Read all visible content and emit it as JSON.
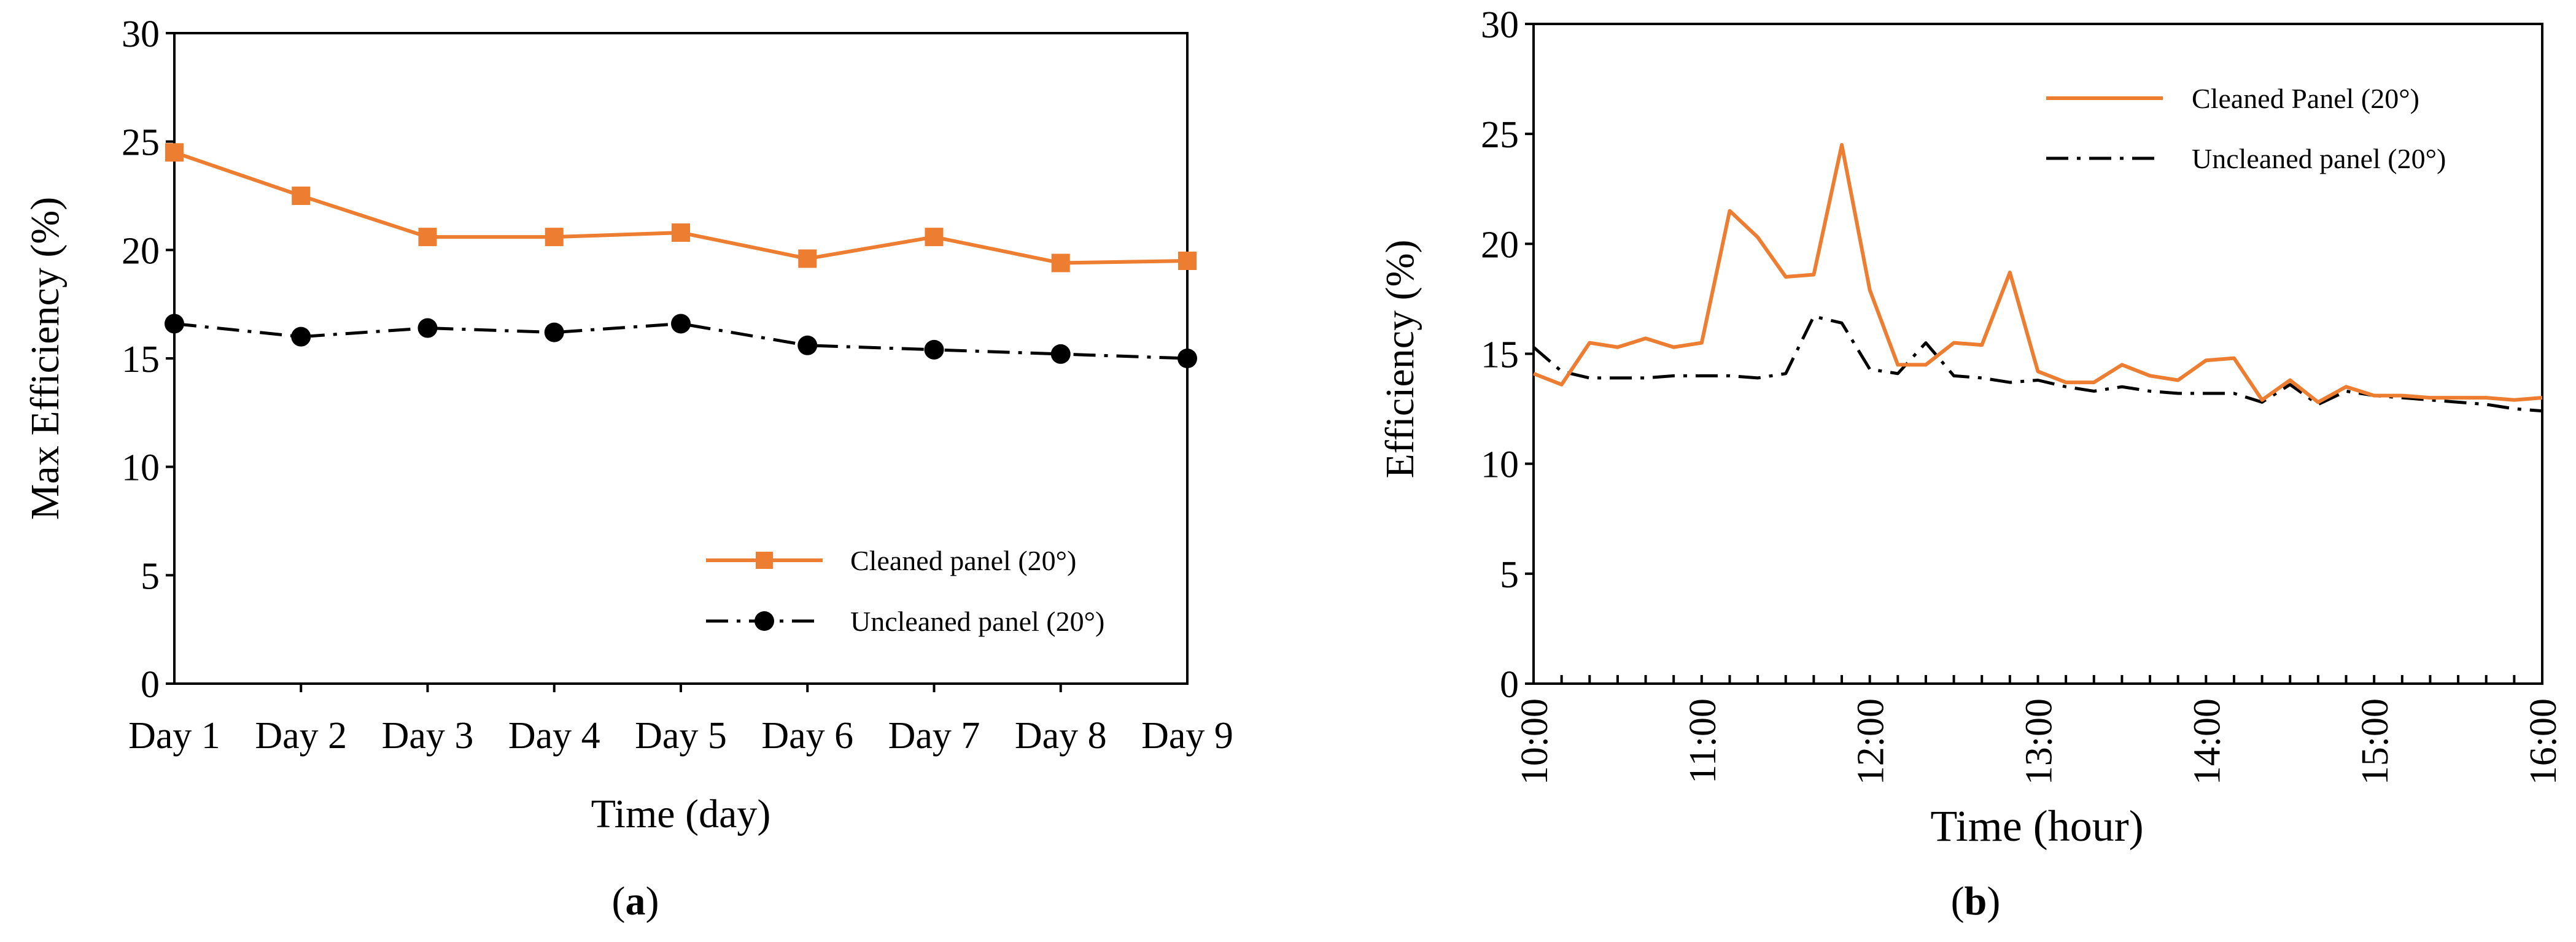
{
  "colors": {
    "cleaned": "#ED7D31",
    "uncleaned": "#000000",
    "axis": "#000000"
  },
  "chart_data": [
    {
      "panel_label": "a",
      "type": "line",
      "xlabel": "Time (day)",
      "ylabel": "Max Efficiency (%)",
      "ylim": [
        0,
        30
      ],
      "yticks": [
        "0",
        "5",
        "10",
        "15",
        "20",
        "25",
        "30"
      ],
      "grid": false,
      "legend_position": "bottom-right",
      "categories": [
        "Day 1",
        "Day 2",
        "Day 3",
        "Day 4",
        "Day 5",
        "Day 6",
        "Day 7",
        "Day 8",
        "Day 9"
      ],
      "series": [
        {
          "name": "Cleaned panel (20°)",
          "color": "#ED7D31",
          "line_style": "solid",
          "marker": "square",
          "values": [
            24.5,
            22.5,
            20.6,
            20.6,
            20.8,
            19.6,
            20.6,
            19.4,
            19.5
          ]
        },
        {
          "name": "Uncleaned panel (20°)",
          "color": "#000000",
          "line_style": "dash-dot",
          "marker": "circle",
          "values": [
            16.6,
            16.0,
            16.4,
            16.2,
            16.6,
            15.6,
            15.4,
            15.2,
            15.0
          ]
        }
      ]
    },
    {
      "panel_label": "b",
      "type": "line",
      "xlabel": "Time (hour)",
      "ylabel": "Efficiency (%)",
      "ylim": [
        0,
        30
      ],
      "xlim": [
        "10:00",
        "16:00"
      ],
      "yticks": [
        "0",
        "5",
        "10",
        "15",
        "20",
        "25",
        "30"
      ],
      "xtick_labels": [
        "10:00",
        "11:00",
        "12:00",
        "13:00",
        "14:00",
        "15:00",
        "16:00"
      ],
      "grid": false,
      "legend_position": "top-right",
      "x": [
        "10:00",
        "10:10",
        "10:20",
        "10:30",
        "10:40",
        "10:50",
        "11:00",
        "11:10",
        "11:20",
        "11:30",
        "11:40",
        "11:50",
        "12:00",
        "12:10",
        "12:20",
        "12:30",
        "12:40",
        "12:50",
        "13:00",
        "13:10",
        "13:20",
        "13:30",
        "13:40",
        "13:50",
        "14:00",
        "14:10",
        "14:20",
        "14:30",
        "14:40",
        "14:50",
        "15:00",
        "15:10",
        "15:20",
        "15:30",
        "15:40",
        "15:50",
        "16:00"
      ],
      "series": [
        {
          "name": "Cleaned Panel (20°)",
          "color": "#ED7D31",
          "line_style": "solid",
          "values": [
            14.1,
            13.6,
            15.5,
            15.3,
            15.7,
            15.3,
            15.5,
            21.5,
            20.3,
            18.5,
            18.6,
            24.5,
            17.9,
            14.5,
            14.5,
            15.5,
            15.4,
            18.7,
            14.2,
            13.7,
            13.7,
            14.5,
            14.0,
            13.8,
            14.7,
            14.8,
            12.9,
            13.8,
            12.8,
            13.5,
            13.1,
            13.1,
            13.0,
            13.0,
            13.0,
            12.9,
            13.0
          ]
        },
        {
          "name": "Uncleaned panel (20°)",
          "color": "#000000",
          "line_style": "dash-dot",
          "values": [
            15.3,
            14.2,
            13.9,
            13.9,
            13.9,
            14.0,
            14.0,
            14.0,
            13.9,
            14.1,
            16.7,
            16.4,
            14.3,
            14.1,
            15.5,
            14.0,
            13.9,
            13.7,
            13.8,
            13.5,
            13.3,
            13.5,
            13.3,
            13.2,
            13.2,
            13.2,
            12.8,
            13.6,
            12.7,
            13.3,
            13.1,
            13.0,
            12.9,
            12.8,
            12.7,
            12.5,
            12.4
          ]
        }
      ]
    }
  ]
}
